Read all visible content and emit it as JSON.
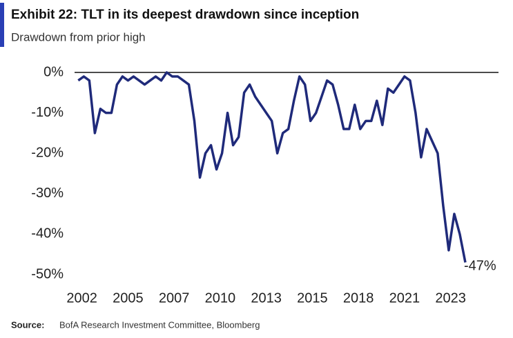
{
  "chart_data": {
    "type": "line",
    "title": "Exhibit 22: TLT in its deepest drawdown since inception",
    "subtitle": "Drawdown from prior high",
    "source_label": "Source:",
    "source": "BofA Research Investment Committee, Bloomberg",
    "annotation": "-47%",
    "annotation_color": "#e03030",
    "grid": false,
    "xlim": [
      2002.2,
      2025.2
    ],
    "xticks": [
      {
        "value": 2002.6,
        "label": "2002"
      },
      {
        "value": 2005.1,
        "label": "2005"
      },
      {
        "value": 2007.6,
        "label": "2007"
      },
      {
        "value": 2010.1,
        "label": "2010"
      },
      {
        "value": 2012.6,
        "label": "2013"
      },
      {
        "value": 2015.1,
        "label": "2015"
      },
      {
        "value": 2017.6,
        "label": "2018"
      },
      {
        "value": 2020.1,
        "label": "2021"
      },
      {
        "value": 2022.6,
        "label": "2023"
      }
    ],
    "ylim": [
      -50,
      0
    ],
    "yticks": [
      {
        "value": 0,
        "label": "0%"
      },
      {
        "value": -10,
        "label": "-10%"
      },
      {
        "value": -20,
        "label": "-20%"
      },
      {
        "value": -30,
        "label": "-30%"
      },
      {
        "value": -40,
        "label": "-40%"
      },
      {
        "value": -50,
        "label": "-50%"
      }
    ],
    "x": [
      2002.4,
      2002.7,
      2003.0,
      2003.3,
      2003.6,
      2003.9,
      2004.2,
      2004.5,
      2004.8,
      2005.1,
      2005.4,
      2005.7,
      2006.0,
      2006.3,
      2006.6,
      2006.9,
      2007.2,
      2007.5,
      2007.8,
      2008.1,
      2008.4,
      2008.7,
      2009.0,
      2009.3,
      2009.6,
      2009.9,
      2010.2,
      2010.5,
      2010.8,
      2011.1,
      2011.4,
      2011.7,
      2012.0,
      2012.3,
      2012.6,
      2012.9,
      2013.2,
      2013.5,
      2013.8,
      2014.1,
      2014.4,
      2014.7,
      2015.0,
      2015.3,
      2015.6,
      2015.9,
      2016.2,
      2016.5,
      2016.8,
      2017.1,
      2017.4,
      2017.7,
      2018.0,
      2018.3,
      2018.6,
      2018.9,
      2019.2,
      2019.5,
      2019.8,
      2020.1,
      2020.4,
      2020.7,
      2021.0,
      2021.3,
      2021.6,
      2021.9,
      2022.2,
      2022.5,
      2022.8,
      2023.1,
      2023.4
    ],
    "series": [
      {
        "name": "TLT drawdown",
        "color": "#1f2a7a",
        "values": [
          -2,
          -1,
          -2,
          -15,
          -9,
          -10,
          -10,
          -3,
          -1,
          -2,
          -1,
          -2,
          -3,
          -2,
          -1,
          -2,
          0,
          -1,
          -1,
          -2,
          -3,
          -12,
          -26,
          -20,
          -18,
          -24,
          -20,
          -10,
          -18,
          -16,
          -5,
          -3,
          -6,
          -8,
          -10,
          -12,
          -20,
          -15,
          -14,
          -7,
          -1,
          -3,
          -12,
          -10,
          -6,
          -2,
          -3,
          -8,
          -14,
          -14,
          -8,
          -14,
          -12,
          -12,
          -7,
          -13,
          -4,
          -5,
          -3,
          -1,
          -2,
          -10,
          -21,
          -14,
          -17,
          -20,
          -33,
          -44,
          -35,
          -40,
          -47
        ]
      }
    ]
  }
}
